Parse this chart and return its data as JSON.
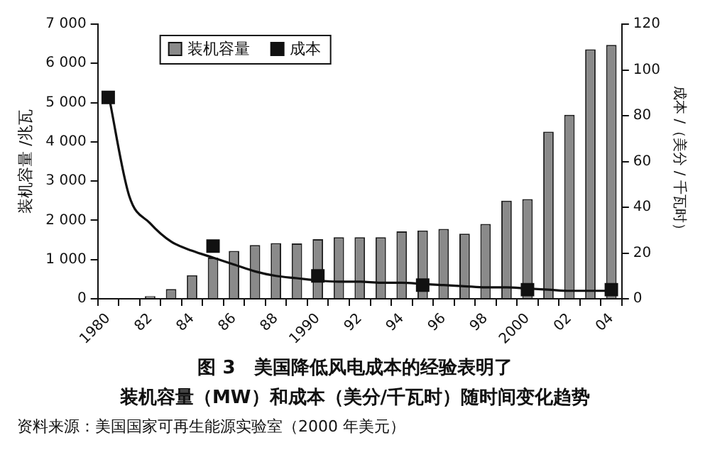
{
  "chart_data": {
    "type": "bar",
    "title": "图 3　美国降低风电成本的经验表明了",
    "subtitle": "装机容量（MW）和成本（美分/千瓦时）随时间变化趋势",
    "annotations": [
      "资料来源：美国国家可再生能源实验室（2000 年美元）"
    ],
    "ylabel": "装机容量 /兆瓦",
    "y2label": "成本 /（美分 / 千瓦时）",
    "categories": [
      "1980",
      null,
      "82",
      null,
      "84",
      null,
      "86",
      null,
      "88",
      null,
      "1990",
      null,
      "92",
      null,
      "94",
      null,
      "96",
      null,
      "98",
      null,
      "2000",
      null,
      "02",
      null,
      "04"
    ],
    "series": [
      {
        "name": "装机容量",
        "color": "#8a8a8a",
        "values": [
          null,
          null,
          70,
          250,
          600,
          1050,
          1220,
          1370,
          1420,
          1410,
          1520,
          1570,
          1570,
          1570,
          1720,
          1740,
          1780,
          1660,
          1910,
          2500,
          2540,
          4260,
          4690,
          6360,
          6470
        ]
      },
      {
        "name": "成本",
        "type": "scatter",
        "axis": "y2",
        "marker": "square",
        "color": "#111111",
        "values": [
          88,
          null,
          null,
          null,
          null,
          23,
          null,
          null,
          null,
          null,
          10,
          null,
          null,
          null,
          null,
          6,
          null,
          null,
          null,
          null,
          4,
          null,
          null,
          null,
          4
        ]
      },
      {
        "type": "line",
        "axis": "y2",
        "marker": "none",
        "line_style": "solid",
        "color": "#111111",
        "values": [
          90,
          45,
          33,
          25,
          21,
          18,
          15,
          12,
          10,
          9,
          8,
          7.5,
          7.5,
          7,
          7,
          6.5,
          6,
          5.5,
          5,
          5,
          4.5,
          4,
          3.5,
          3.5,
          3.5
        ]
      }
    ],
    "ylim": [
      0,
      7000
    ],
    "yticks": [
      {
        "value": 0,
        "label": "0"
      },
      {
        "value": 1000,
        "label": "1 000"
      },
      {
        "value": 2000,
        "label": "2 000"
      },
      {
        "value": 3000,
        "label": "3 000"
      },
      {
        "value": 4000,
        "label": "4 000"
      },
      {
        "value": 5000,
        "label": "5 000"
      },
      {
        "value": 6000,
        "label": "6 000"
      },
      {
        "value": 7000,
        "label": "7 000"
      }
    ],
    "y2lim": [
      0,
      120
    ],
    "y2ticks": [
      0,
      20,
      40,
      60,
      80,
      100,
      120
    ],
    "grid": false,
    "legend": "top left"
  }
}
